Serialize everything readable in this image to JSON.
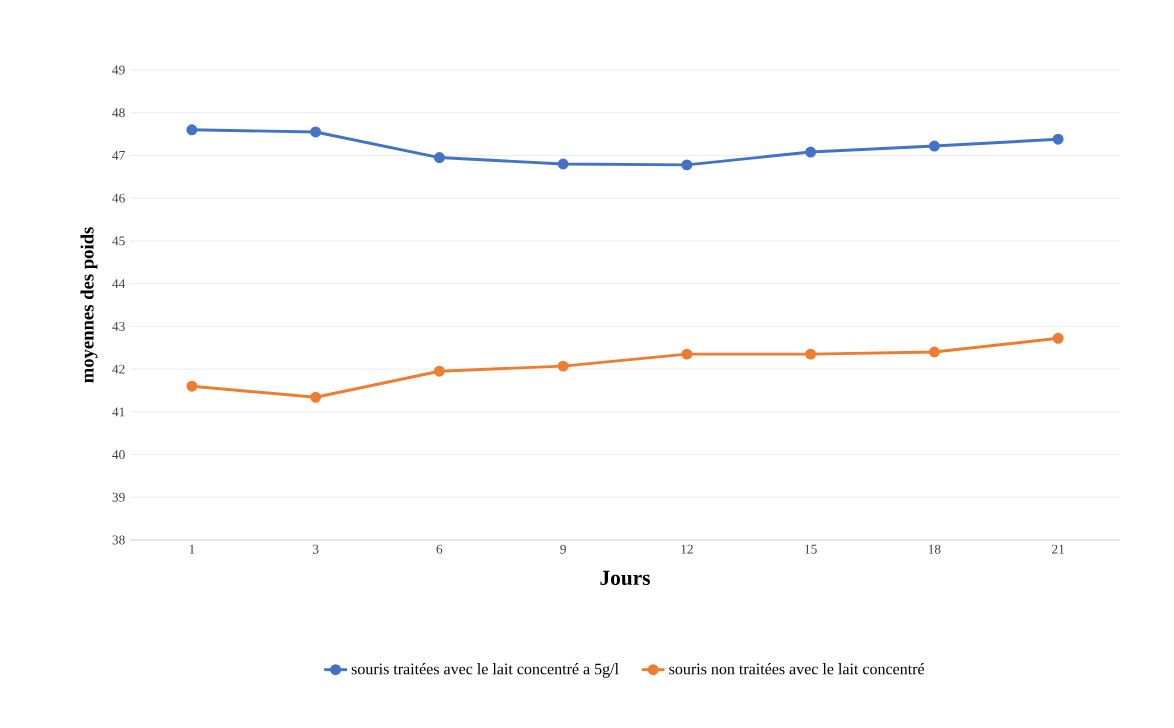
{
  "chart_data": {
    "type": "line",
    "xlabel": "Jours",
    "ylabel": "moyennes des poids",
    "categories": [
      "1",
      "3",
      "6",
      "9",
      "12",
      "15",
      "18",
      "21"
    ],
    "series": [
      {
        "name": "souris traitées avec le lait concentré a 5g/l",
        "color": "#4472c4",
        "values": [
          47.6,
          47.55,
          46.95,
          46.8,
          46.78,
          47.08,
          47.22,
          47.38
        ]
      },
      {
        "name": "souris non traitées avec le lait concentré",
        "color": "#ed7d31",
        "values": [
          41.6,
          41.34,
          41.95,
          42.07,
          42.35,
          42.35,
          42.4,
          42.72
        ]
      }
    ],
    "ylim": [
      38,
      49
    ],
    "yticks": [
      38,
      39,
      40,
      41,
      42,
      43,
      44,
      45,
      46,
      47,
      48,
      49
    ],
    "grid": "y",
    "legend": "bottom",
    "marker": "circle",
    "line_style": "solid"
  }
}
